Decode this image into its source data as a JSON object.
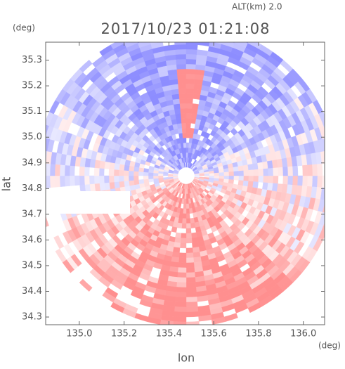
{
  "chart_data": {
    "type": "image",
    "title": "2017/10/23 01:21:08",
    "annotations": [
      "ALT(km) 2.0"
    ],
    "x_label": "lon",
    "y_label": "lat",
    "x_unit": "(deg)",
    "y_unit": "(deg)",
    "xlim": [
      134.85,
      136.095
    ],
    "ylim": [
      34.27,
      35.37
    ],
    "xticks": [
      {
        "value": 135,
        "label": "135.0"
      },
      {
        "value": 135.2,
        "label": "135.2"
      },
      {
        "value": 135.4,
        "label": "135.4"
      },
      {
        "value": 135.6,
        "label": "135.6"
      },
      {
        "value": 135.8,
        "label": "135.8"
      },
      {
        "value": 136,
        "label": "136.0"
      }
    ],
    "yticks": [
      34.3,
      34.4,
      34.5,
      34.6,
      34.7,
      34.8,
      34.9,
      {
        "value": 35,
        "label": "35.0"
      },
      35.1,
      35.2,
      35.3
    ]
  }
}
